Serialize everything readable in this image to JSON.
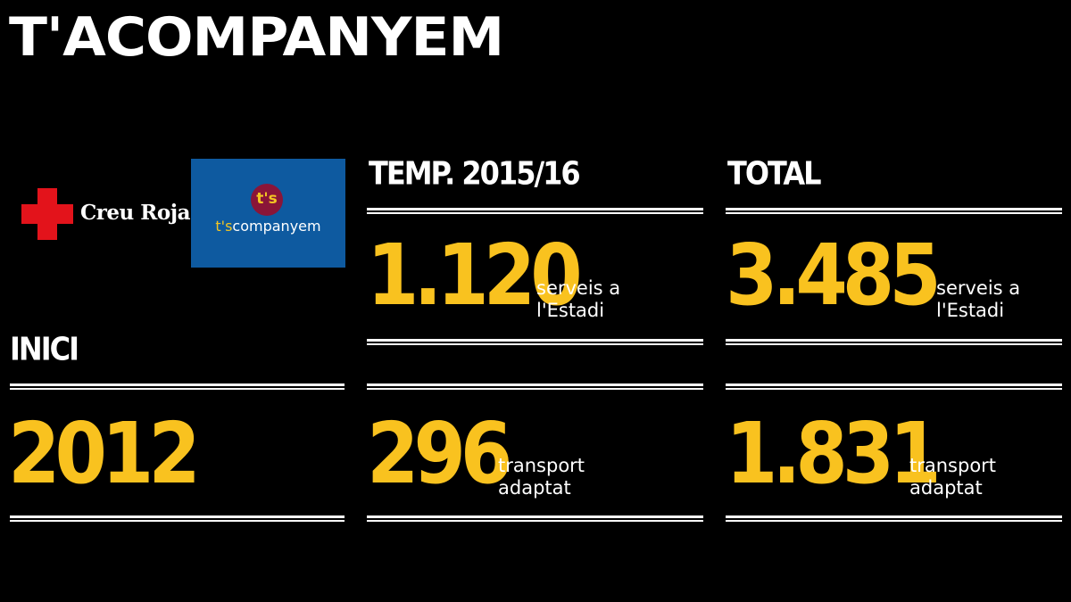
{
  "title": "T'ACOMPANYEM",
  "logos": {
    "creu_roja_text": "Creu Roja",
    "tacompanyem_badge": "t's",
    "tacompanyem_prefix": "t's",
    "tacompanyem_suffix": "companyem",
    "colors": {
      "cross": "#e3131b",
      "badge_bg": "#0e5aa0",
      "badge_circle": "#8a1538",
      "badge_accent": "#f3c623"
    }
  },
  "inici": {
    "label": "INICI",
    "value": "2012"
  },
  "temporada": {
    "label": "TEMP. 2015/16",
    "serveis": {
      "value": "1.120",
      "line1": "serveis a",
      "line2": "l'Estadi"
    },
    "transport": {
      "value": "296",
      "line1": "transport",
      "line2": "adaptat"
    }
  },
  "total": {
    "label": "TOTAL",
    "serveis": {
      "value": "3.485",
      "line1": "serveis a",
      "line2": "l'Estadi"
    },
    "transport": {
      "value": "1.831",
      "line1": "transport",
      "line2": "adaptat"
    }
  },
  "colors": {
    "background": "#000000",
    "number": "#f9c21f",
    "text": "#ffffff"
  }
}
